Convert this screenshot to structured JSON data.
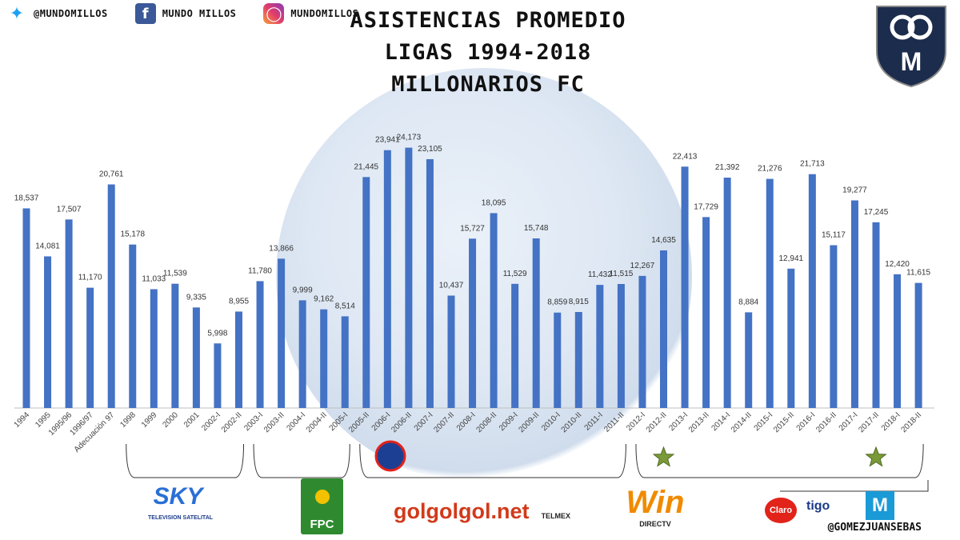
{
  "header": {
    "social": [
      {
        "icon": "twitter-icon",
        "text": "@MUNDOMILLOS"
      },
      {
        "icon": "facebook-icon",
        "text": "MUNDO MILLOS"
      },
      {
        "icon": "instagram-icon",
        "text": "MUNDOMILLOS"
      }
    ],
    "title_lines": [
      "ASISTENCIAS PROMEDIO",
      "LIGAS 1994-2018",
      "MILLONARIOS FC"
    ]
  },
  "crest": {
    "letter": "M"
  },
  "sponsors": {
    "sky": {
      "name": "SKY",
      "subtitle": "TELEVISION SATELITAL"
    },
    "fpc": {
      "name": "FPC"
    },
    "golgolgol": {
      "name": "golgolgol.net",
      "partner": "TELMEX"
    },
    "win": {
      "name": "Win",
      "partner": "DIRECTV"
    },
    "claro": {
      "name": "Claro"
    },
    "tigo": {
      "name": "tigo"
    },
    "movistar": {
      "name": "M"
    }
  },
  "handle": "@GOMEZJUANSEBAS",
  "colors": {
    "bar": "#4472c4",
    "star": "#7a9a3a"
  },
  "chart_data": {
    "type": "bar",
    "title": "ASISTENCIAS PROMEDIO LIGAS 1994-2018 MILLONARIOS FC",
    "categories": [
      "1994",
      "1995",
      "1995/96",
      "1996/97",
      "Adecuación 97",
      "1998",
      "1999",
      "2000",
      "2001",
      "2002-I",
      "2002-II",
      "2003-I",
      "2003-II",
      "2004-I",
      "2004-II",
      "2005-I",
      "2005-II",
      "2006-I",
      "2006-II",
      "2007-I",
      "2007-II",
      "2008-I",
      "2008-II",
      "2009-I",
      "2009-II",
      "2010-I",
      "2010-II",
      "2011-I",
      "2011-II",
      "2012-I",
      "2012-II",
      "2013-I",
      "2013-II",
      "2014-I",
      "2014-II",
      "2015-I",
      "2015-II",
      "2016-I",
      "2016-II",
      "2017-I",
      "2017-II",
      "2018-I",
      "2018-II"
    ],
    "values": [
      18537,
      14081,
      17507,
      11170,
      20761,
      15178,
      11033,
      11539,
      9335,
      5998,
      8955,
      11780,
      13866,
      9999,
      9162,
      8514,
      21445,
      23941,
      24173,
      23105,
      10437,
      15727,
      18095,
      11529,
      15748,
      8859,
      8915,
      11432,
      11515,
      12267,
      14635,
      22413,
      17729,
      21392,
      8884,
      21276,
      12941,
      21713,
      15117,
      19277,
      17245,
      12420,
      11615
    ],
    "labels": [
      "18,537",
      "14,081",
      "17,507",
      "11,170",
      "20,761",
      "15,178",
      "11,033",
      "11,539",
      "9,335",
      "5,998",
      "8,955",
      "11,780",
      "13,866",
      "9,999",
      "9,162",
      "8,514",
      "21,445",
      "23,941",
      "24,173",
      "23,105",
      "10,437",
      "15,727",
      "18,095",
      "11,529",
      "15,748",
      "8,859",
      "8,915",
      "11,432",
      "11,515",
      "12,267",
      "14,635",
      "22,413",
      "17,729",
      "21,392",
      "8,884",
      "21,276",
      "12,941",
      "21,713",
      "15,117",
      "19,277",
      "17,245",
      "12,420",
      "11,615"
    ],
    "ylim": [
      0,
      26000
    ],
    "grid": false,
    "stars_at": [
      "2012-II",
      "2017-II"
    ]
  }
}
